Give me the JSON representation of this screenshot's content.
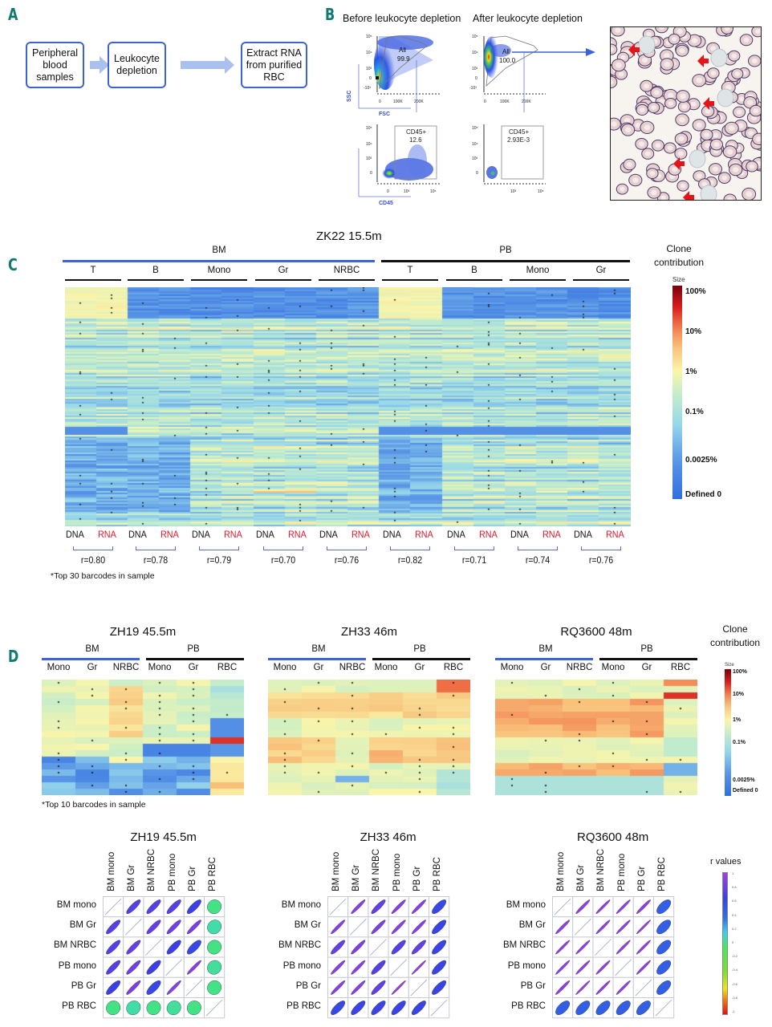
{
  "panel_letters": {
    "A": "A",
    "B": "B",
    "C": "C",
    "D": "D"
  },
  "panel_a": {
    "steps": [
      "Peripheral blood samples",
      "Leukocyte depletion",
      "Extract RNA from purified RBC"
    ],
    "colors": {
      "box_border": "#3d63d8",
      "arrow": "#aac0ee"
    }
  },
  "panel_b": {
    "before_title": "Before leukocyte depletion",
    "after_title": "After leukocyte depletion",
    "top_axes": {
      "x_label": "FSC",
      "y_label": "SSC",
      "x_ticks": [
        "0",
        "100K",
        "200K"
      ],
      "y_ticks": [
        "10^5",
        "10^4",
        "10^3",
        "0",
        "-10^3"
      ]
    },
    "bottom_axes": {
      "x_label": "CD45",
      "x_ticks": [
        "0",
        "10^3",
        "10^5"
      ],
      "y_ticks": [
        "10^5",
        "10^4",
        "10^3",
        "0"
      ]
    },
    "gates": {
      "before_all": {
        "name": "All",
        "value": "99.9"
      },
      "after_all": {
        "name": "All",
        "value": "100.0"
      },
      "before_cd45": {
        "name": "CD45+",
        "value": "12.6"
      },
      "after_cd45": {
        "name": "CD45+",
        "value": "2.93E-3"
      }
    },
    "smear_arrows_count": 5
  },
  "panel_c": {
    "title": "ZK22 15.5m",
    "groups": [
      {
        "name": "BM",
        "color": "#3d63d8",
        "cell_types": [
          "T",
          "B",
          "Mono",
          "Gr",
          "NRBC"
        ]
      },
      {
        "name": "PB",
        "color": "#111111",
        "cell_types": [
          "T",
          "B",
          "Mono",
          "Gr"
        ]
      }
    ],
    "dna_label": "DNA",
    "rna_label": "RNA",
    "rna_color": "#e0182d",
    "correlations": [
      "r=0.80",
      "r=0.78",
      "r=0.79",
      "r=0.70",
      "r=0.76",
      "r=0.82",
      "r=0.71",
      "r=0.74",
      "r=0.76"
    ],
    "footnote": "*Top 30 barcodes in sample",
    "legend": {
      "title_line1": "Clone",
      "title_line2": "contribution",
      "size_label": "Size",
      "ticks": [
        "100%",
        "10%",
        "1%",
        "0.1%",
        "0.0025%",
        "Defined 0"
      ]
    }
  },
  "panel_d": {
    "heatmaps": [
      {
        "title": "ZH19 45.5m",
        "groups": [
          {
            "name": "BM",
            "color": "#3d63d8"
          },
          {
            "name": "PB",
            "color": "#111111"
          }
        ],
        "columns": [
          "Mono",
          "Gr",
          "NRBC",
          "Mono",
          "Gr",
          "RBC"
        ]
      },
      {
        "title": "ZH33 46m",
        "groups": [
          {
            "name": "BM",
            "color": "#3d63d8"
          },
          {
            "name": "PB",
            "color": "#111111"
          }
        ],
        "columns": [
          "Mono",
          "Gr",
          "NRBC",
          "Mono",
          "Gr",
          "RBC"
        ]
      },
      {
        "title": "RQ3600 48m",
        "groups": [
          {
            "name": "BM",
            "color": "#3d63d8"
          },
          {
            "name": "PB",
            "color": "#111111"
          }
        ],
        "columns": [
          "Mono",
          "Gr",
          "NRBC",
          "Mono",
          "Gr",
          "RBC"
        ]
      }
    ],
    "footnote": "*Top 10 barcodes in sample",
    "legend": {
      "title_line1": "Clone",
      "title_line2": "contribution",
      "size_label": "Size",
      "ticks": [
        "100%",
        "10%",
        "1%",
        "0.1%",
        "0.0025%",
        "Defined 0"
      ]
    },
    "r_legend": {
      "title": "r values",
      "ticks": [
        "1",
        "0.8",
        "0.6",
        "0.4",
        "0.2",
        "0",
        "-0.2",
        "-0.4",
        "-0.6",
        "-0.8",
        "-1"
      ]
    }
  },
  "chart_data": [
    {
      "type": "heatmap",
      "title": "ZK22 15.5m",
      "rows_description": "Top 30 barcodes in each sample (union)",
      "columns": [
        "BM T DNA",
        "BM T RNA",
        "BM B DNA",
        "BM B RNA",
        "BM Mono DNA",
        "BM Mono RNA",
        "BM Gr DNA",
        "BM Gr RNA",
        "BM NRBC DNA",
        "BM NRBC RNA",
        "PB T DNA",
        "PB T RNA",
        "PB B DNA",
        "PB B RNA",
        "PB Mono DNA",
        "PB Mono RNA",
        "PB Gr DNA",
        "PB Gr RNA"
      ],
      "color_scale": {
        "label": "Clone contribution",
        "ticks": [
          "100%",
          "10%",
          "1%",
          "0.1%",
          "0.0025%",
          "Defined 0"
        ]
      },
      "pair_correlations": {
        "labels": [
          "BM T",
          "BM B",
          "BM Mono",
          "BM Gr",
          "BM NRBC",
          "PB T",
          "PB B",
          "PB Mono",
          "PB Gr"
        ],
        "r": [
          0.8,
          0.78,
          0.79,
          0.7,
          0.76,
          0.82,
          0.71,
          0.74,
          0.76
        ]
      }
    },
    {
      "type": "heatmap",
      "title": "ZH19 45.5m",
      "columns": [
        "BM Mono",
        "BM Gr",
        "BM NRBC",
        "PB Mono",
        "PB Gr",
        "PB RBC"
      ],
      "rows_description": "Top 10 barcodes in sample"
    },
    {
      "type": "heatmap",
      "title": "ZH33 46m",
      "columns": [
        "BM Mono",
        "BM Gr",
        "BM NRBC",
        "PB Mono",
        "PB Gr",
        "PB RBC"
      ],
      "rows_description": "Top 10 barcodes in sample"
    },
    {
      "type": "heatmap",
      "title": "RQ3600 48m",
      "columns": [
        "BM Mono",
        "BM Gr",
        "BM NRBC",
        "PB Mono",
        "PB Gr",
        "PB RBC"
      ],
      "rows_description": "Top 10 barcodes in sample"
    },
    {
      "type": "heatmap",
      "subtype": "correlation-ellipse",
      "title": "ZH19 45.5m",
      "labels": [
        "BM mono",
        "BM Gr",
        "BM NRBC",
        "PB mono",
        "PB Gr",
        "PB RBC"
      ],
      "r": [
        [
          1,
          0.85,
          0.85,
          0.85,
          0.8,
          0.05
        ],
        [
          0.85,
          1,
          0.88,
          0.9,
          0.92,
          0.1
        ],
        [
          0.85,
          0.88,
          1,
          0.8,
          0.75,
          0.05
        ],
        [
          0.85,
          0.9,
          0.8,
          1,
          0.95,
          0.08
        ],
        [
          0.8,
          0.92,
          0.75,
          0.95,
          1,
          0.05
        ],
        [
          0.05,
          0.1,
          0.05,
          0.08,
          0.05,
          1
        ]
      ],
      "color_range": [
        -1,
        1
      ]
    },
    {
      "type": "heatmap",
      "subtype": "correlation-ellipse",
      "title": "ZH33 46m",
      "labels": [
        "BM mono",
        "BM Gr",
        "BM NRBC",
        "PB mono",
        "PB Gr",
        "PB RBC"
      ],
      "r": [
        [
          1,
          0.95,
          0.88,
          0.95,
          0.95,
          0.75
        ],
        [
          0.95,
          1,
          0.93,
          0.95,
          0.95,
          0.78
        ],
        [
          0.88,
          0.93,
          1,
          0.85,
          0.88,
          0.78
        ],
        [
          0.95,
          0.95,
          0.85,
          1,
          0.98,
          0.78
        ],
        [
          0.95,
          0.95,
          0.88,
          0.98,
          1,
          0.78
        ],
        [
          0.75,
          0.78,
          0.78,
          0.78,
          0.78,
          1
        ]
      ],
      "color_range": [
        -1,
        1
      ]
    },
    {
      "type": "heatmap",
      "subtype": "correlation-ellipse",
      "title": "RQ3600 48m",
      "labels": [
        "BM mono",
        "BM Gr",
        "BM NRBC",
        "PB mono",
        "PB Gr",
        "PB RBC"
      ],
      "r": [
        [
          1,
          0.96,
          0.97,
          0.97,
          0.96,
          0.6
        ],
        [
          0.96,
          1,
          0.97,
          0.97,
          0.99,
          0.6
        ],
        [
          0.97,
          0.97,
          1,
          0.97,
          0.97,
          0.6
        ],
        [
          0.97,
          0.97,
          0.97,
          1,
          0.97,
          0.6
        ],
        [
          0.96,
          0.99,
          0.97,
          0.97,
          1,
          0.6
        ],
        [
          0.6,
          0.6,
          0.6,
          0.6,
          0.6,
          1
        ]
      ],
      "color_range": [
        -1,
        1
      ],
      "legend": {
        "title": "r values",
        "ticks": [
          "1",
          "0.8",
          "0.6",
          "0.4",
          "0.2",
          "0",
          "-0.2",
          "-0.4",
          "-0.6",
          "-0.8",
          "-1"
        ]
      }
    }
  ]
}
